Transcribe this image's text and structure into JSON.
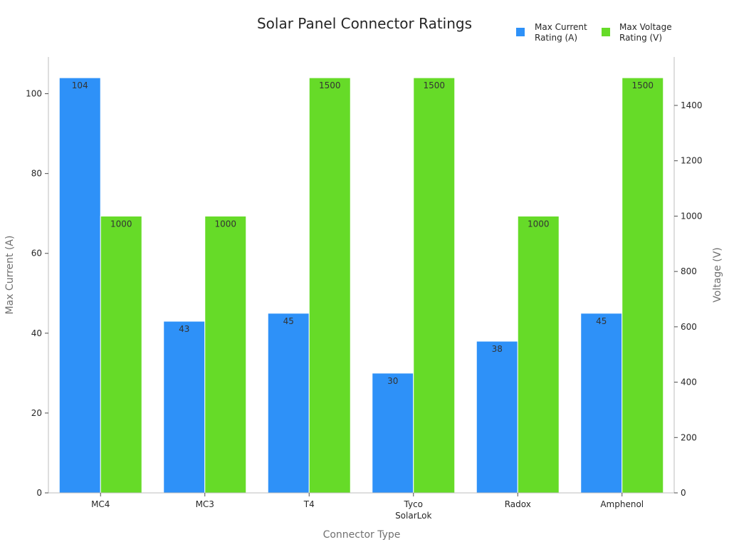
{
  "chart_data": {
    "type": "bar",
    "title": "Solar Panel Connector Ratings",
    "xlabel": "Connector Type",
    "ylabel_left": "Max Current (A)",
    "ylabel_right": "Voltage (V)",
    "categories": [
      "MC4",
      "MC3",
      "T4",
      "Tyco SolarLok",
      "Radox",
      "Amphenol"
    ],
    "series": [
      {
        "name": "Max Current Rating (A)",
        "axis": "left",
        "color": "#2e91f8",
        "values": [
          104,
          43,
          45,
          30,
          38,
          45
        ]
      },
      {
        "name": "Max Voltage Rating (V)",
        "axis": "right",
        "color": "#66db28",
        "values": [
          1000,
          1000,
          1500,
          1500,
          1000,
          1500
        ]
      }
    ],
    "ylim_left": [
      0,
      109.2
    ],
    "yticks_left": [
      0,
      20,
      40,
      60,
      80,
      100
    ],
    "ylim_right": [
      0,
      1575
    ],
    "yticks_right": [
      0,
      200,
      400,
      600,
      800,
      1000,
      1200,
      1400
    ],
    "legend": "top-right",
    "grid": false
  }
}
